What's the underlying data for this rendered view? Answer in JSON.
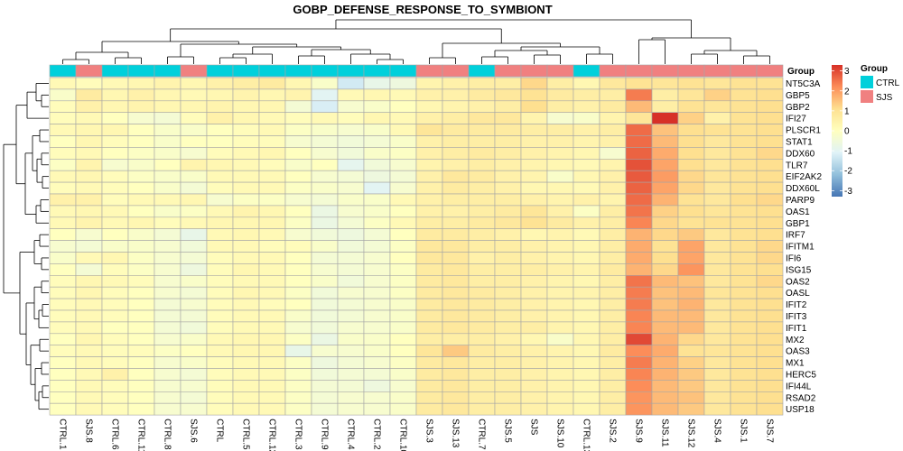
{
  "chart_data": {
    "type": "heatmap",
    "title": "GOBP_DEFENSE_RESPONSE_TO_SYMBIONT",
    "columns": [
      "CTRL.1",
      "SJS.8",
      "CTRL.6",
      "CTRL.11",
      "CTRL.8",
      "SJS.6",
      "CTRL",
      "CTRL.5",
      "CTRL.12",
      "CTRL.3",
      "CTRL.9",
      "CTRL.4",
      "CTRL.2",
      "CTRL.10",
      "SJS.3",
      "SJS.13",
      "CTRL.7",
      "SJS.5",
      "SJS",
      "SJS.10",
      "CTRL.13",
      "SJS.2",
      "SJS.9",
      "SJS.11",
      "SJS.12",
      "SJS.4",
      "SJS.1",
      "SJS.7"
    ],
    "column_groups": [
      "CTRL",
      "SJS",
      "CTRL",
      "CTRL",
      "CTRL",
      "SJS",
      "CTRL",
      "CTRL",
      "CTRL",
      "CTRL",
      "CTRL",
      "CTRL",
      "CTRL",
      "CTRL",
      "SJS",
      "SJS",
      "CTRL",
      "SJS",
      "SJS",
      "SJS",
      "CTRL",
      "SJS",
      "SJS",
      "SJS",
      "SJS",
      "SJS",
      "SJS",
      "SJS"
    ],
    "rows": [
      "NT5C3A",
      "GBP5",
      "GBP2",
      "IFI27",
      "PLSCR1",
      "STAT1",
      "DDX60",
      "TLR7",
      "EIF2AK2",
      "DDX60L",
      "PARP9",
      "OAS1",
      "GBP1",
      "IRF7",
      "IFITM1",
      "IFI6",
      "ISG15",
      "OAS2",
      "OASL",
      "IFIT2",
      "IFIT3",
      "IFIT1",
      "MX2",
      "OAS3",
      "MX1",
      "HERC5",
      "IFI44L",
      "RSAD2",
      "USP18"
    ],
    "values": [
      [
        0.2,
        0.1,
        0.2,
        0.3,
        0.4,
        0.3,
        0.5,
        0.6,
        0.7,
        0.3,
        -0.2,
        -1.3,
        -0.8,
        -0.6,
        0.4,
        0.5,
        0.6,
        0.6,
        1.2,
        0.6,
        0.3,
        0.8,
        1.0,
        0.9,
        1.0,
        0.9,
        1.0,
        1.0
      ],
      [
        -0.2,
        0.7,
        0.3,
        0.5,
        0.3,
        0.2,
        0.3,
        0.4,
        0.3,
        0.4,
        -1.0,
        0.2,
        0.3,
        0.2,
        0.5,
        0.5,
        0.7,
        0.8,
        1.0,
        0.7,
        0.6,
        0.6,
        2.4,
        0.6,
        0.9,
        1.3,
        1.0,
        1.1
      ],
      [
        0.1,
        0.5,
        0.3,
        0.4,
        0.3,
        0.3,
        0.4,
        0.3,
        0.3,
        -0.4,
        -1.2,
        -0.3,
        -0.2,
        0.0,
        0.3,
        0.4,
        0.5,
        0.6,
        1.1,
        0.6,
        0.5,
        0.7,
        1.6,
        0.6,
        1.0,
        0.9,
        1.0,
        1.1
      ],
      [
        0.1,
        0.2,
        0.0,
        -0.3,
        -0.4,
        0.1,
        0.5,
        0.3,
        0.2,
        0.1,
        0.2,
        0.1,
        0.3,
        0.2,
        0.5,
        0.6,
        0.8,
        0.8,
        0.4,
        -0.3,
        -0.2,
        0.4,
        0.9,
        3.3,
        1.3,
        0.5,
        1.0,
        1.1
      ],
      [
        0.2,
        0.3,
        0.3,
        0.0,
        -0.2,
        -0.2,
        0.0,
        0.1,
        0.2,
        -0.1,
        -0.2,
        -0.3,
        -0.2,
        0.2,
        0.9,
        0.7,
        0.7,
        0.7,
        0.6,
        0.6,
        0.5,
        0.6,
        2.6,
        1.5,
        1.1,
        1.0,
        1.0,
        1.1
      ],
      [
        0.0,
        0.3,
        0.1,
        0.0,
        -0.2,
        0.0,
        0.0,
        0.1,
        0.1,
        -0.3,
        -0.4,
        -0.5,
        -0.4,
        -0.2,
        0.5,
        0.6,
        0.6,
        0.6,
        0.5,
        0.5,
        0.4,
        0.5,
        2.6,
        1.6,
        1.1,
        0.8,
        1.0,
        1.1
      ],
      [
        0.1,
        0.2,
        0.0,
        -0.1,
        -0.2,
        -0.3,
        0.1,
        0.2,
        0.3,
        0.0,
        -0.3,
        -0.5,
        -0.2,
        -0.1,
        0.5,
        0.6,
        0.7,
        0.6,
        0.5,
        0.4,
        0.3,
        -0.3,
        2.7,
        1.8,
        1.1,
        0.8,
        1.0,
        1.2
      ],
      [
        -0.1,
        0.4,
        -0.3,
        -0.2,
        0.0,
        0.4,
        0.3,
        0.2,
        0.1,
        -0.2,
        0.0,
        -0.9,
        -0.5,
        -0.3,
        0.4,
        0.5,
        0.6,
        0.5,
        0.4,
        0.3,
        0.2,
        0.4,
        2.9,
        1.9,
        1.1,
        0.8,
        1.0,
        1.1
      ],
      [
        0.2,
        0.3,
        0.1,
        -0.1,
        -0.2,
        -0.2,
        0.2,
        0.2,
        0.2,
        0.0,
        -0.3,
        -0.4,
        -0.6,
        -0.4,
        0.5,
        0.8,
        0.7,
        0.5,
        0.4,
        -0.2,
        0.3,
        0.5,
        2.8,
        2.0,
        1.2,
        0.9,
        1.0,
        1.1
      ],
      [
        0.1,
        0.2,
        0.1,
        0.0,
        -0.2,
        -0.4,
        0.1,
        0.2,
        0.2,
        -0.1,
        -0.2,
        -0.3,
        -1.0,
        -0.3,
        0.5,
        0.7,
        0.6,
        0.5,
        0.3,
        0.3,
        0.2,
        0.5,
        2.7,
        1.9,
        1.2,
        0.8,
        1.0,
        1.1
      ],
      [
        0.5,
        0.5,
        0.1,
        0.2,
        0.2,
        0.3,
        -0.3,
        -0.1,
        -0.1,
        -0.3,
        -0.4,
        -0.2,
        -0.2,
        0.2,
        0.5,
        0.6,
        0.6,
        0.6,
        0.5,
        0.4,
        0.5,
        0.4,
        2.6,
        1.7,
        1.0,
        0.8,
        1.1,
        1.2
      ],
      [
        0.2,
        0.3,
        0.2,
        0.0,
        -0.2,
        -0.1,
        0.2,
        0.4,
        0.3,
        0.0,
        -0.7,
        -0.3,
        -0.2,
        0.0,
        0.5,
        0.5,
        0.6,
        0.7,
        0.9,
        0.5,
        -0.1,
        0.6,
        2.5,
        1.3,
        1.1,
        0.9,
        1.0,
        1.1
      ],
      [
        0.2,
        0.4,
        0.2,
        0.3,
        0.1,
        0.2,
        0.3,
        0.3,
        0.3,
        -0.1,
        -0.7,
        -0.4,
        -0.1,
        0.2,
        0.6,
        0.6,
        0.7,
        0.8,
        1.0,
        0.7,
        0.5,
        0.6,
        2.3,
        1.2,
        1.0,
        1.0,
        1.0,
        1.1
      ],
      [
        0.0,
        -0.3,
        0.0,
        -0.2,
        -0.4,
        -0.8,
        0.2,
        0.3,
        0.2,
        -0.3,
        -0.5,
        -0.6,
        -0.4,
        0.0,
        0.7,
        0.7,
        0.6,
        0.5,
        0.3,
        0.4,
        0.2,
        0.6,
        1.7,
        1.2,
        1.4,
        0.8,
        1.0,
        1.1
      ],
      [
        -0.3,
        -0.4,
        -0.2,
        -0.2,
        -0.3,
        -0.5,
        0.2,
        0.2,
        0.1,
        0.1,
        -0.2,
        -0.5,
        -0.4,
        -0.1,
        0.8,
        0.8,
        0.6,
        0.6,
        0.5,
        0.4,
        0.3,
        0.6,
        1.8,
        1.0,
        1.9,
        0.8,
        1.0,
        1.2
      ],
      [
        -0.2,
        0.2,
        0.3,
        -0.1,
        -0.3,
        -0.4,
        0.1,
        0.2,
        0.2,
        0.0,
        -0.4,
        -0.4,
        -0.3,
        0.0,
        0.8,
        0.8,
        0.5,
        0.6,
        0.5,
        0.4,
        0.3,
        0.6,
        1.8,
        1.1,
        1.9,
        0.8,
        1.0,
        1.2
      ],
      [
        0.0,
        -0.4,
        0.1,
        -0.1,
        -0.3,
        -0.6,
        0.1,
        0.3,
        0.2,
        0.0,
        -0.3,
        -0.4,
        -0.3,
        -0.1,
        0.7,
        0.8,
        0.6,
        0.6,
        0.6,
        0.5,
        0.4,
        0.7,
        1.7,
        1.2,
        2.1,
        0.8,
        1.0,
        1.1
      ],
      [
        0.1,
        0.3,
        0.2,
        0.1,
        -0.3,
        -0.2,
        0.1,
        0.2,
        0.2,
        0.0,
        -0.2,
        -0.5,
        -0.3,
        -0.1,
        0.7,
        0.8,
        0.6,
        0.6,
        0.5,
        0.4,
        0.3,
        0.6,
        2.5,
        1.6,
        1.5,
        0.8,
        1.0,
        1.2
      ],
      [
        0.1,
        0.3,
        0.1,
        0.0,
        -0.3,
        -0.4,
        0.1,
        0.3,
        0.2,
        -0.1,
        -0.5,
        -0.3,
        -0.3,
        -0.1,
        0.7,
        0.8,
        0.7,
        0.6,
        0.5,
        0.4,
        0.4,
        0.6,
        2.4,
        1.5,
        1.6,
        0.9,
        1.0,
        1.1
      ],
      [
        0.1,
        0.2,
        0.1,
        0.0,
        -0.4,
        -0.3,
        0.1,
        0.2,
        0.1,
        0.0,
        -0.5,
        -0.4,
        -0.3,
        -0.2,
        0.7,
        0.8,
        0.7,
        0.6,
        0.5,
        0.4,
        0.3,
        0.6,
        2.4,
        1.5,
        1.7,
        0.8,
        1.0,
        1.1
      ],
      [
        0.1,
        0.2,
        0.1,
        0.0,
        -0.4,
        -0.4,
        0.1,
        0.2,
        0.2,
        -0.2,
        -0.5,
        -0.4,
        -0.3,
        -0.2,
        0.7,
        0.8,
        0.7,
        0.6,
        0.5,
        0.4,
        0.3,
        0.6,
        2.3,
        1.6,
        1.6,
        0.8,
        1.0,
        1.1
      ],
      [
        0.1,
        0.2,
        0.0,
        0.0,
        -0.4,
        -0.5,
        0.1,
        0.2,
        0.2,
        -0.3,
        -0.5,
        -0.3,
        -0.3,
        -0.2,
        0.7,
        0.8,
        0.7,
        0.6,
        0.6,
        0.4,
        0.3,
        0.6,
        2.3,
        1.6,
        1.6,
        0.8,
        1.0,
        1.1
      ],
      [
        0.0,
        0.3,
        0.1,
        0.0,
        -0.3,
        -0.2,
        0.2,
        0.3,
        0.3,
        -0.1,
        -0.7,
        -0.2,
        -0.2,
        0.0,
        0.6,
        0.6,
        0.6,
        0.5,
        0.3,
        -0.2,
        0.3,
        0.6,
        3.0,
        1.7,
        1.2,
        0.8,
        1.0,
        1.1
      ],
      [
        0.1,
        0.2,
        0.1,
        0.1,
        -0.1,
        0.0,
        0.2,
        0.3,
        0.3,
        -0.8,
        -0.3,
        -0.3,
        -0.2,
        0.0,
        0.9,
        1.4,
        0.7,
        0.6,
        0.5,
        0.4,
        0.3,
        0.7,
        2.2,
        1.8,
        1.0,
        0.9,
        1.0,
        1.1
      ],
      [
        0.0,
        0.2,
        0.1,
        0.0,
        -0.3,
        -0.2,
        0.1,
        0.2,
        0.2,
        -0.1,
        -0.6,
        -0.4,
        -0.3,
        -0.1,
        0.7,
        0.8,
        0.6,
        0.6,
        0.5,
        0.4,
        0.3,
        0.6,
        2.4,
        1.7,
        1.3,
        0.8,
        1.0,
        1.1
      ],
      [
        0.0,
        0.2,
        0.5,
        0.0,
        -0.3,
        -0.4,
        0.1,
        0.2,
        0.2,
        -0.1,
        -0.5,
        -0.4,
        -0.4,
        -0.2,
        0.7,
        0.8,
        0.6,
        0.6,
        0.5,
        0.4,
        0.3,
        0.6,
        2.3,
        1.7,
        1.4,
        0.8,
        1.0,
        1.1
      ],
      [
        0.0,
        0.2,
        0.1,
        0.0,
        -0.3,
        -0.3,
        0.1,
        0.2,
        0.2,
        -0.1,
        -0.4,
        -0.4,
        -0.6,
        -0.3,
        0.7,
        0.8,
        0.6,
        0.6,
        0.5,
        0.4,
        0.3,
        0.6,
        2.2,
        1.6,
        1.4,
        0.8,
        1.0,
        1.1
      ],
      [
        0.0,
        0.2,
        0.1,
        0.0,
        -0.3,
        -0.4,
        0.1,
        0.2,
        0.2,
        -0.1,
        -0.4,
        -0.3,
        -0.3,
        -0.2,
        0.7,
        0.8,
        0.6,
        0.6,
        0.5,
        0.4,
        0.3,
        0.6,
        2.1,
        1.6,
        1.5,
        0.8,
        1.0,
        1.1
      ],
      [
        0.0,
        0.2,
        0.1,
        0.0,
        -0.3,
        -0.3,
        0.1,
        0.2,
        0.2,
        -0.1,
        -0.4,
        -0.3,
        -0.3,
        -0.2,
        0.7,
        0.8,
        0.6,
        0.6,
        0.5,
        0.4,
        0.3,
        0.6,
        2.1,
        1.6,
        1.4,
        0.8,
        1.0,
        1.1
      ]
    ],
    "color_scale": {
      "min": -3.3,
      "max": 3.3,
      "ticks": [
        3,
        2,
        1,
        0,
        -1,
        -2,
        -3
      ],
      "colors": [
        "#4575b4",
        "#91bfdb",
        "#e0f3f8",
        "#ffffbf",
        "#fee090",
        "#fc8d59",
        "#d73027"
      ]
    },
    "annotation": {
      "name": "Group",
      "labels": [
        "CTRL",
        "SJS"
      ],
      "colors": {
        "CTRL": "#00d0db",
        "SJS": "#f08080"
      }
    },
    "legend": {
      "title": "Group",
      "position": "right"
    },
    "dendrograms": {
      "rows": true,
      "columns": true
    }
  }
}
